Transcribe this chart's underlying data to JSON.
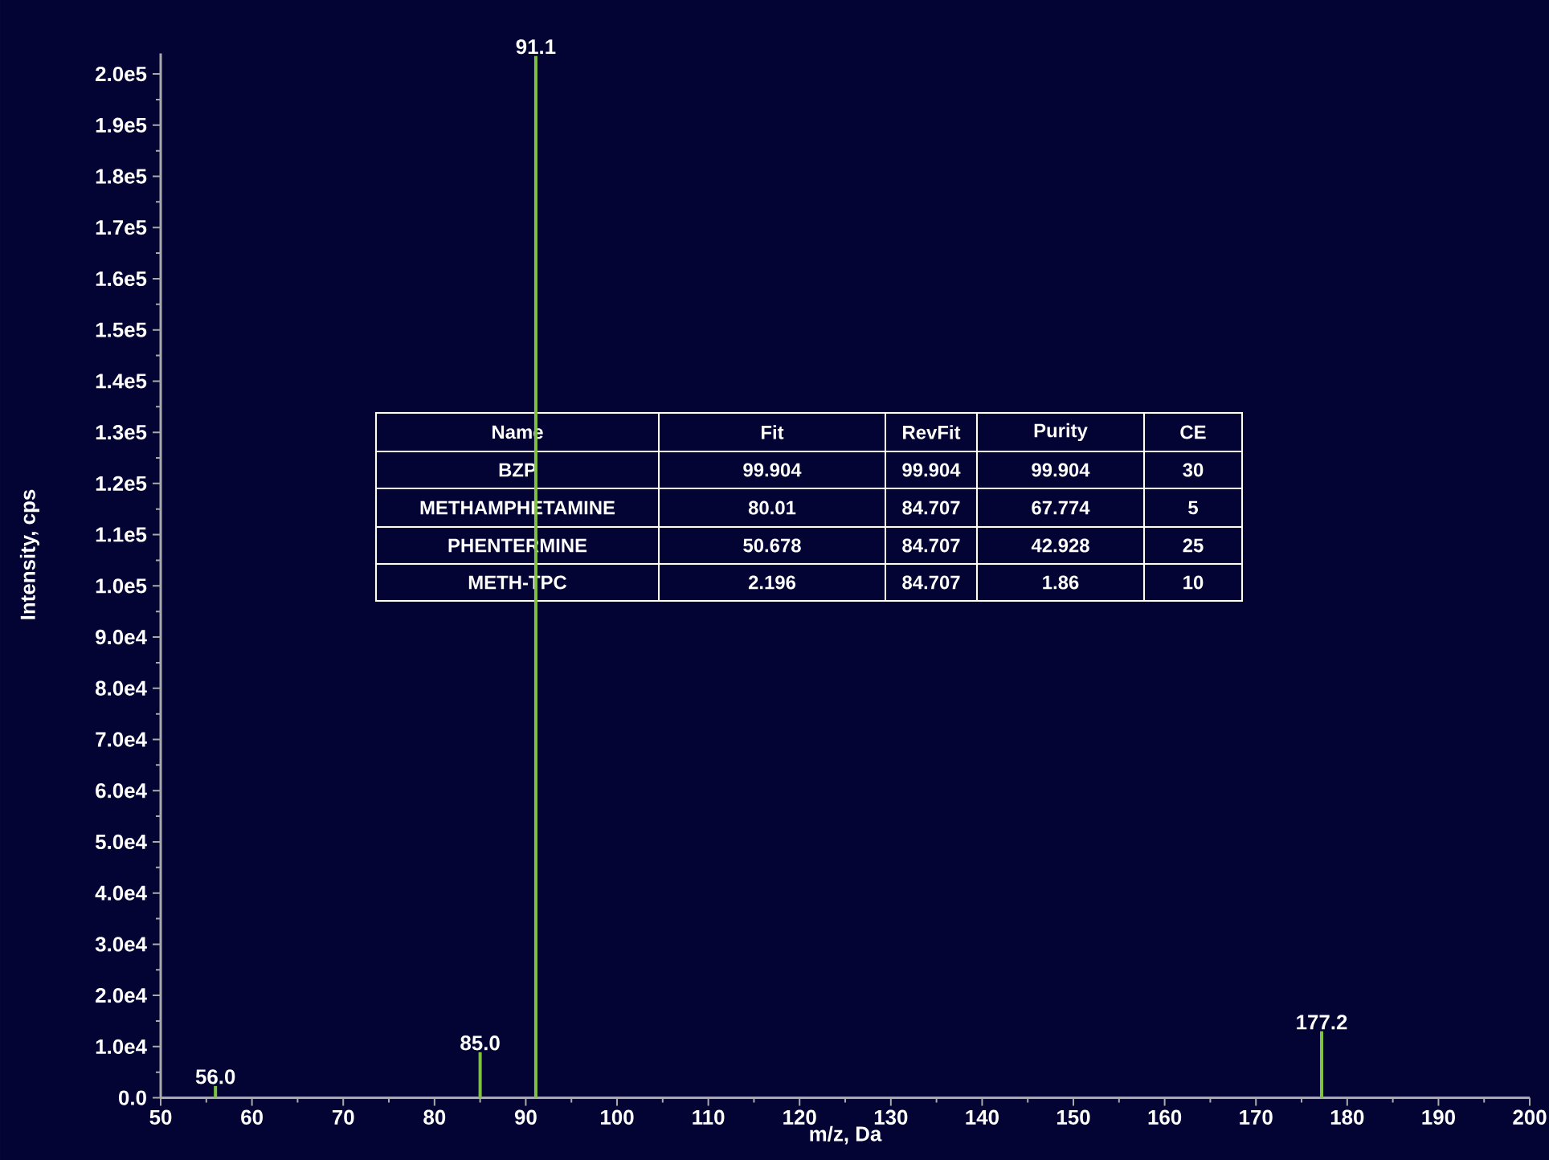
{
  "chart_data": {
    "type": "bar",
    "xlabel": "m/z, Da",
    "ylabel": "Intensity, cps",
    "x": [
      56.0,
      85.0,
      91.1,
      177.2
    ],
    "values": [
      2300,
      8900,
      203500,
      13000
    ],
    "color": "#7fc241",
    "xlim": [
      50,
      200
    ],
    "xticks": [
      50,
      60,
      70,
      80,
      90,
      100,
      110,
      120,
      130,
      140,
      150,
      160,
      170,
      180,
      190,
      200
    ],
    "ylim": [
      0,
      204000
    ],
    "yticks": [
      {
        "value": 0,
        "label": "0.0"
      },
      {
        "value": 10000,
        "label": "1.0e4"
      },
      {
        "value": 20000,
        "label": "2.0e4"
      },
      {
        "value": 30000,
        "label": "3.0e4"
      },
      {
        "value": 40000,
        "label": "4.0e4"
      },
      {
        "value": 50000,
        "label": "5.0e4"
      },
      {
        "value": 60000,
        "label": "6.0e4"
      },
      {
        "value": 70000,
        "label": "7.0e4"
      },
      {
        "value": 80000,
        "label": "8.0e4"
      },
      {
        "value": 90000,
        "label": "9.0e4"
      },
      {
        "value": 100000,
        "label": "1.0e5"
      },
      {
        "value": 110000,
        "label": "1.1e5"
      },
      {
        "value": 120000,
        "label": "1.2e5"
      },
      {
        "value": 130000,
        "label": "1.3e5"
      },
      {
        "value": 140000,
        "label": "1.4e5"
      },
      {
        "value": 150000,
        "label": "1.5e5"
      },
      {
        "value": 160000,
        "label": "1.6e5"
      },
      {
        "value": 170000,
        "label": "1.7e5"
      },
      {
        "value": 180000,
        "label": "1.8e5"
      },
      {
        "value": 190000,
        "label": "1.9e5"
      },
      {
        "value": 200000,
        "label": "2.0e5"
      }
    ],
    "grid": false,
    "annotations": [
      {
        "text": "56.0",
        "x": 56.0,
        "y": 2300
      },
      {
        "text": "85.0",
        "x": 85.0,
        "y": 8900
      },
      {
        "text": "91.1",
        "x": 91.1,
        "y": 203500
      },
      {
        "text": "177.2",
        "x": 177.2,
        "y": 13000
      },
      "Name",
      "Fit",
      "RevFit",
      "Purity",
      "CE",
      "BZP",
      "99.904",
      "99.904",
      "99.904",
      "30",
      "METHAMPHETAMINE",
      "80.01",
      "84.707",
      "67.774",
      "5",
      "PHENTERMINE",
      "50.678",
      "84.707",
      "42.928",
      "25",
      "METH-TPC",
      "2.196",
      "84.707",
      "1.86",
      "10"
    ]
  }
}
